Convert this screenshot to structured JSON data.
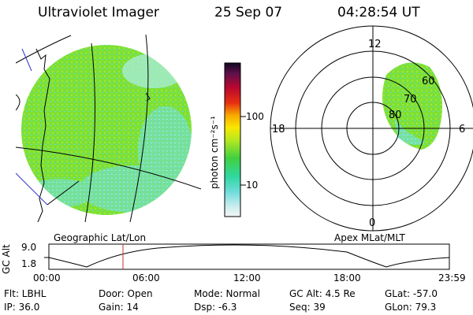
{
  "header": {
    "instrument": "Ultraviolet Imager",
    "date": "25 Sep 07",
    "time": "04:28:54 UT"
  },
  "colors": {
    "aurora_low": "#5fe0d0",
    "aurora_mid": "#7fe030",
    "time_marker": "#c83232",
    "coast_line": "#3333cc"
  },
  "colorbar": {
    "unit_label": "photon cm⁻²s⁻¹",
    "ticks": [
      "100",
      "10"
    ],
    "scale": "log"
  },
  "left_map": {
    "label": "Geographic Lat/Lon"
  },
  "right_map": {
    "label": "Apex MLat/MLT",
    "mlt_labels": {
      "top": "12",
      "left": "18",
      "right": "6",
      "bottom": "0"
    },
    "mlat_labels": [
      "80",
      "70",
      "60"
    ]
  },
  "altitude_plot": {
    "ylabel": "GC Alt",
    "yticks": [
      "9.0",
      "1.8"
    ],
    "xticks": [
      "00:00",
      "06:00",
      "12:00",
      "18:00",
      "23:59"
    ],
    "marker_time": "04:28:54"
  },
  "info": {
    "flt": "Flt: LBHL",
    "ip": "IP: 36.0",
    "door": "Door: Open",
    "gain": "Gain: 14",
    "mode": "Mode: Normal",
    "dsp": "Dsp:   -6.3",
    "gcalt": "GC Alt: 4.5 Re",
    "seq": "Seq: 39",
    "glat": "GLat:  -57.0",
    "glon": "GLon:  79.3"
  }
}
